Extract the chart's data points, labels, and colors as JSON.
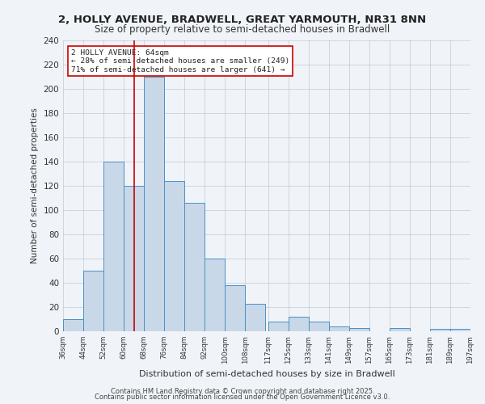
{
  "title1": "2, HOLLY AVENUE, BRADWELL, GREAT YARMOUTH, NR31 8NN",
  "title2": "Size of property relative to semi-detached houses in Bradwell",
  "xlabel": "Distribution of semi-detached houses by size in Bradwell",
  "ylabel": "Number of semi-detached properties",
  "footer1": "Contains HM Land Registry data © Crown copyright and database right 2025.",
  "footer2": "Contains public sector information licensed under the Open Government Licence v3.0.",
  "property_size": 64,
  "property_label": "2 HOLLY AVENUE: 64sqm",
  "pct_smaller": 28,
  "count_smaller": 249,
  "pct_larger": 71,
  "count_larger": 641,
  "bar_color": "#c8d8e8",
  "bar_edge_color": "#4a90c4",
  "vline_color": "#cc0000",
  "annotation_box_color": "#cc0000",
  "bins": [
    36,
    44,
    52,
    60,
    68,
    76,
    84,
    92,
    100,
    108,
    117,
    125,
    133,
    141,
    149,
    157,
    165,
    173,
    181,
    189,
    197
  ],
  "bin_labels": [
    "36sqm",
    "44sqm",
    "52sqm",
    "60sqm",
    "68sqm",
    "76sqm",
    "84sqm",
    "92sqm",
    "100sqm",
    "108sqm",
    "117sqm",
    "125sqm",
    "133sqm",
    "141sqm",
    "149sqm",
    "157sqm",
    "165sqm",
    "173sqm",
    "181sqm",
    "189sqm",
    "197sqm"
  ],
  "counts": [
    10,
    50,
    140,
    120,
    210,
    124,
    106,
    60,
    38,
    23,
    8,
    12,
    8,
    4,
    3,
    0,
    3,
    0,
    2,
    2
  ],
  "ylim": [
    0,
    240
  ],
  "yticks": [
    0,
    20,
    40,
    60,
    80,
    100,
    120,
    140,
    160,
    180,
    200,
    220,
    240
  ],
  "background_color": "#f0f4f8",
  "plot_bg_color": "#f0f4f8"
}
